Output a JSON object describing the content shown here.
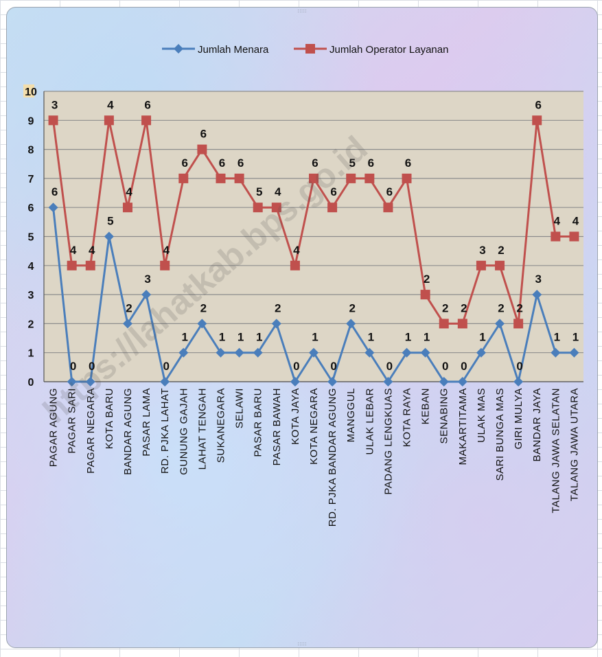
{
  "chart_data": {
    "type": "line",
    "title": "",
    "xlabel": "",
    "ylabel": "",
    "ylim": [
      0,
      10
    ],
    "yticks": [
      "0",
      "1",
      "2",
      "3",
      "4",
      "5",
      "6",
      "7",
      "8",
      "9",
      "10"
    ],
    "grid": true,
    "legend_position": "top",
    "categories": [
      "PAGAR AGUNG",
      "PAGAR SARI",
      "PAGAR NEGARA",
      "KOTA BARU",
      "BANDAR AGUNG",
      "PASAR LAMA",
      "RD. PJKA LAHAT",
      "GUNUNG GAJAH",
      "LAHAT TENGAH",
      "SUKANEGARA",
      "SELAWI",
      "PASAR BARU",
      "PASAR BAWAH",
      "KOTA JAYA",
      "KOTA NEGARA",
      "RD. PJKA BANDAR AGUNG",
      "MANGGUL",
      "ULAK LEBAR",
      "PADANG LENGKUAS",
      "KOTA RAYA",
      "KEBAN",
      "SENABING",
      "MAKARTITAMA",
      "ULAK MAS",
      "SARI BUNGA MAS",
      "GIRI MULYA",
      "BANDAR JAYA",
      "TALANG JAWA SELATAN",
      "TALANG JAWA UTARA"
    ],
    "series": [
      {
        "name": "Jumlah Menara",
        "color": "#4a7ebb",
        "marker": "diamond",
        "values": [
          6,
          0,
          0,
          5,
          2,
          3,
          0,
          1,
          2,
          1,
          1,
          1,
          2,
          0,
          1,
          0,
          2,
          1,
          0,
          1,
          1,
          0,
          0,
          1,
          2,
          0,
          3,
          1,
          1
        ],
        "labels": [
          "6",
          "0",
          "0",
          "5",
          "2",
          "3",
          "0",
          "1",
          "2",
          "1",
          "1",
          "1",
          "2",
          "0",
          "1",
          "0",
          "2",
          "1",
          "0",
          "1",
          "1",
          "0",
          "0",
          "1",
          "2",
          "0",
          "3",
          "1",
          "1"
        ]
      },
      {
        "name": "Jumlah Operator Layanan",
        "color": "#c0504d",
        "marker": "square",
        "values": [
          9,
          4,
          4,
          9,
          6,
          9,
          4,
          7,
          8,
          7,
          7,
          6,
          6,
          4,
          7,
          6,
          7,
          7,
          6,
          7,
          3,
          2,
          2,
          4,
          4,
          2,
          9,
          5,
          5
        ],
        "labels": [
          "3",
          "4",
          "4",
          "4",
          "4",
          "6",
          "4",
          "6",
          "6",
          "6",
          "6",
          "5",
          "4",
          "4",
          "6",
          "6",
          "5",
          "6",
          "6",
          "6",
          "2",
          "2",
          "2",
          "3",
          "2",
          "2",
          "6",
          "4",
          "4"
        ]
      }
    ],
    "watermark": "https://lahatkab.bps.go.id"
  }
}
